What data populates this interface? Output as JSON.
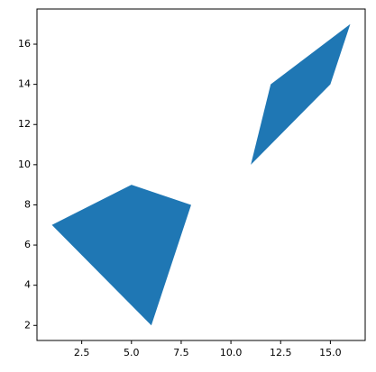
{
  "chart_data": {
    "type": "fill",
    "series": [
      {
        "color": "#1f77b4",
        "x": [
          1,
          5,
          8,
          6
        ],
        "y": [
          7,
          9,
          8,
          2
        ]
      },
      {
        "color": "#1f77b4",
        "x": [
          11,
          12,
          16,
          15
        ],
        "y": [
          10,
          14,
          17,
          14
        ]
      }
    ],
    "xlim": [
      0.25,
      16.75
    ],
    "ylim": [
      1.25,
      17.75
    ],
    "xticks": [
      2.5,
      {
        "value": 5,
        "label": "5.0"
      },
      7.5,
      {
        "value": 10,
        "label": "10.0"
      },
      12.5,
      {
        "value": 15,
        "label": "15.0"
      }
    ],
    "yticks": [
      2,
      4,
      6,
      8,
      10,
      12,
      14,
      16
    ]
  }
}
